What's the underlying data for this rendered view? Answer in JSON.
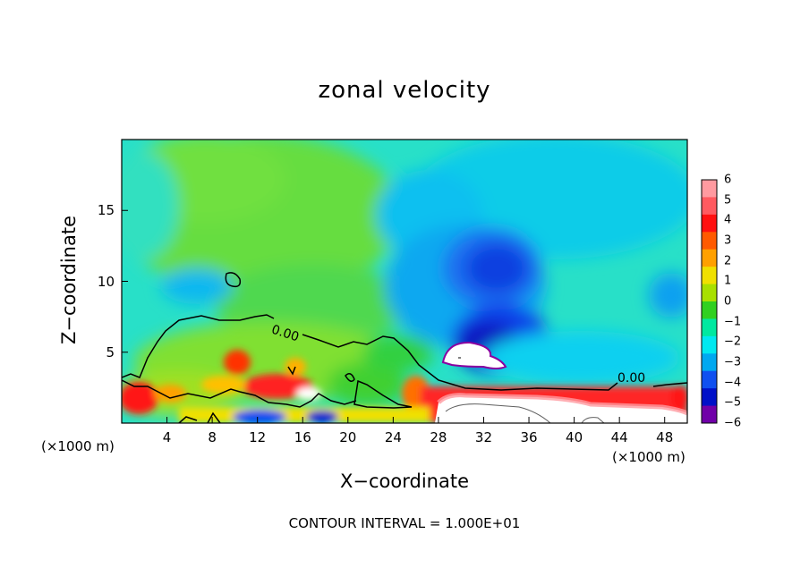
{
  "chart_data": {
    "type": "heatmap",
    "title": "zonal velocity",
    "xlabel": "X−coordinate",
    "ylabel": "Z−coordinate",
    "x_unit_left": "(×1000 m)",
    "x_unit_right": "(×1000 m)",
    "footnote": "CONTOUR INTERVAL = 1.000E+01",
    "xlim": [
      0,
      50
    ],
    "ylim": [
      0,
      20
    ],
    "x_ticks": [
      4,
      8,
      12,
      16,
      20,
      24,
      28,
      32,
      36,
      40,
      44,
      48
    ],
    "y_ticks": [
      5,
      10,
      15
    ],
    "colorbar": {
      "levels": [
        6,
        5,
        4,
        3,
        2,
        1,
        0,
        -1,
        -2,
        -3,
        -4,
        -5,
        -6
      ],
      "labels": [
        "6",
        "5",
        "4",
        "3",
        "2",
        "1",
        "0",
        "−1",
        "−2",
        "−3",
        "−4",
        "−5",
        "−6"
      ],
      "colors": [
        "#ff9aa0",
        "#ff5a60",
        "#ff1010",
        "#ff5a00",
        "#ffa000",
        "#f0e000",
        "#a8e000",
        "#30d020",
        "#00e8a0",
        "#00e8f0",
        "#00a8f0",
        "#1050f0",
        "#0010c8",
        "#7000a8"
      ]
    },
    "contour_labels": [
      "0.00",
      "0.00"
    ]
  }
}
